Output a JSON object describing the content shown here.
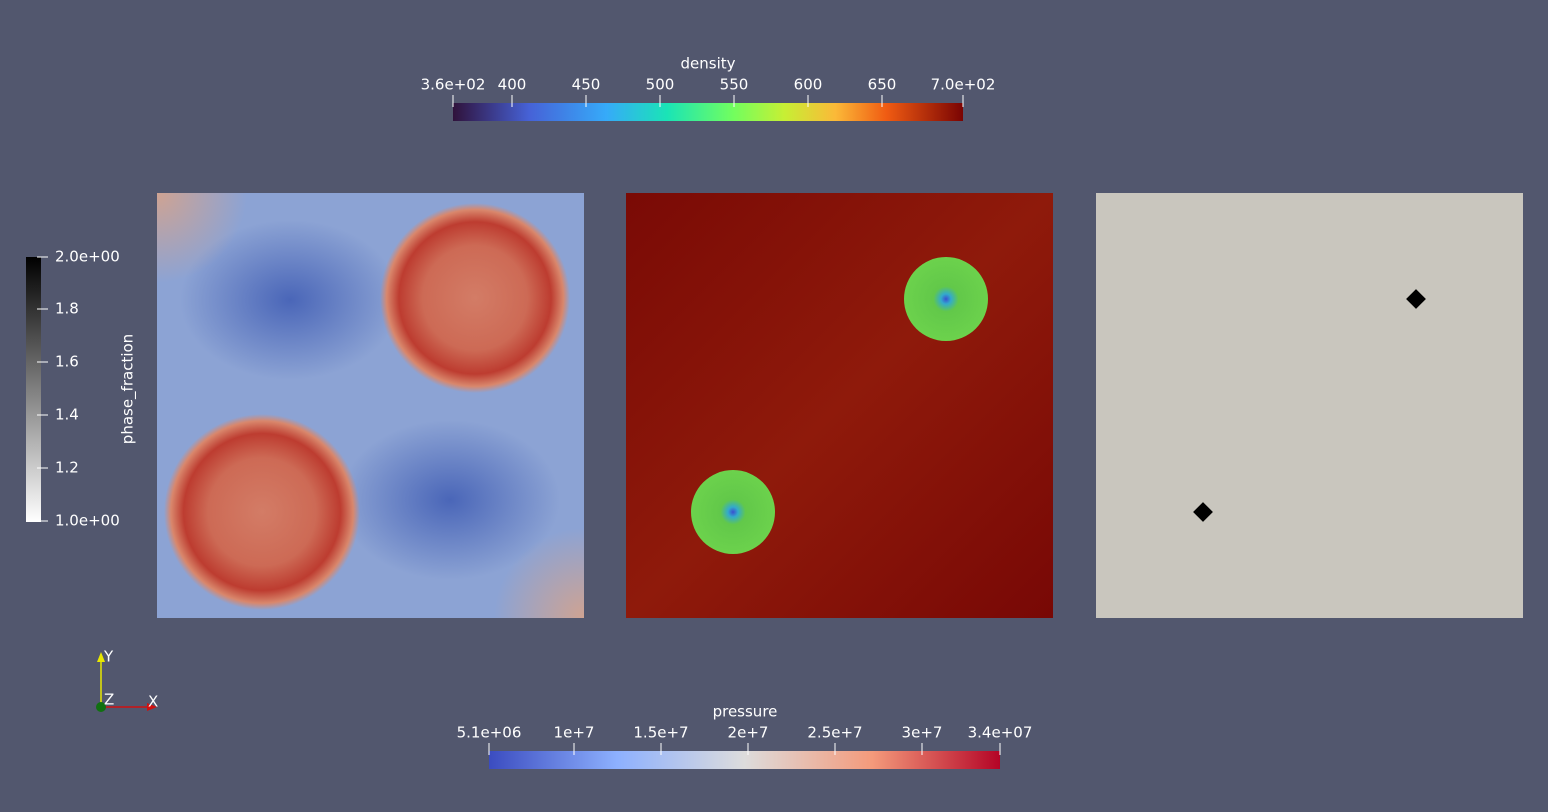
{
  "colorbars": [
    {
      "title": "density",
      "ticks": [
        "3.6e+02",
        "400",
        "450",
        "500",
        "550",
        "600",
        "650",
        "7.0e+02"
      ]
    },
    {
      "title": "pressure",
      "ticks": [
        "5.1e+06",
        "1e+7",
        "1.5e+7",
        "2e+7",
        "2.5e+7",
        "3e+7",
        "3.4e+07"
      ]
    },
    {
      "title": "phase_fraction",
      "ticks": [
        "2.0e+00",
        "1.8",
        "1.6",
        "1.4",
        "1.2",
        "1.0e+00"
      ]
    }
  ],
  "axes": {
    "y": "Y",
    "z": "Z",
    "x": "X"
  }
}
